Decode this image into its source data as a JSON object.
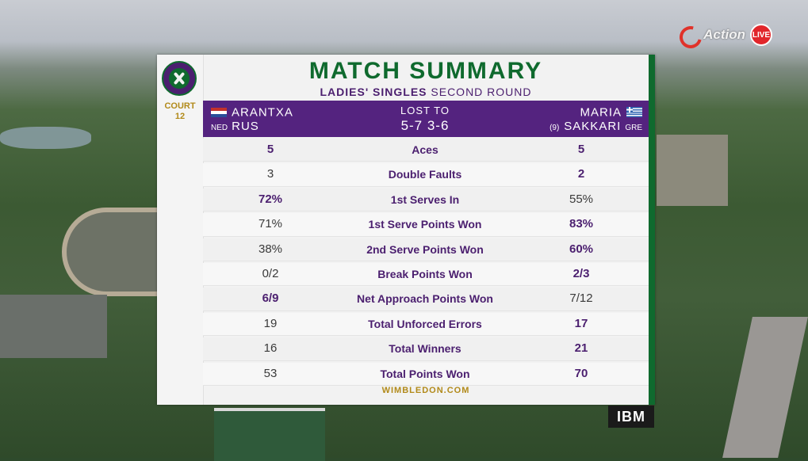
{
  "broadcast": {
    "channel": "Action",
    "live_label": "LIVE"
  },
  "crest": {
    "court_label": "COURT",
    "court_number": "12"
  },
  "title": "MATCH SUMMARY",
  "subtitle": {
    "event": "LADIES' SINGLES",
    "round": "SECOND ROUND"
  },
  "player1": {
    "first": "ARANTXA",
    "last": "RUS",
    "country": "NED"
  },
  "result": {
    "label": "LOST TO",
    "score": "5-7 3-6"
  },
  "player2": {
    "first": "MARIA",
    "last": "SAKKARI",
    "country": "GRE",
    "seed": "(9)"
  },
  "stats": [
    {
      "label": "Aces",
      "p1": "5",
      "p2": "5",
      "p1_bold": true,
      "p2_bold": true
    },
    {
      "label": "Double Faults",
      "p1": "3",
      "p2": "2",
      "p1_bold": false,
      "p2_bold": true
    },
    {
      "label": "1st Serves In",
      "p1": "72%",
      "p2": "55%",
      "p1_bold": true,
      "p2_bold": false
    },
    {
      "label": "1st Serve Points Won",
      "p1": "71%",
      "p2": "83%",
      "p1_bold": false,
      "p2_bold": true
    },
    {
      "label": "2nd Serve Points Won",
      "p1": "38%",
      "p2": "60%",
      "p1_bold": false,
      "p2_bold": true
    },
    {
      "label": "Break Points Won",
      "p1": "0/2",
      "p2": "2/3",
      "p1_bold": false,
      "p2_bold": true
    },
    {
      "label": "Net Approach Points Won",
      "p1": "6/9",
      "p2": "7/12",
      "p1_bold": true,
      "p2_bold": false
    },
    {
      "label": "Total Unforced Errors",
      "p1": "19",
      "p2": "17",
      "p1_bold": false,
      "p2_bold": true
    },
    {
      "label": "Total Winners",
      "p1": "16",
      "p2": "21",
      "p1_bold": false,
      "p2_bold": true
    },
    {
      "label": "Total Points Won",
      "p1": "53",
      "p2": "70",
      "p1_bold": false,
      "p2_bold": true
    }
  ],
  "footer": "WIMBLEDON.COM",
  "sponsor": "IBM",
  "colors": {
    "purple": "#54237f",
    "green": "#0f6a2e",
    "gold": "#b28a1a"
  }
}
